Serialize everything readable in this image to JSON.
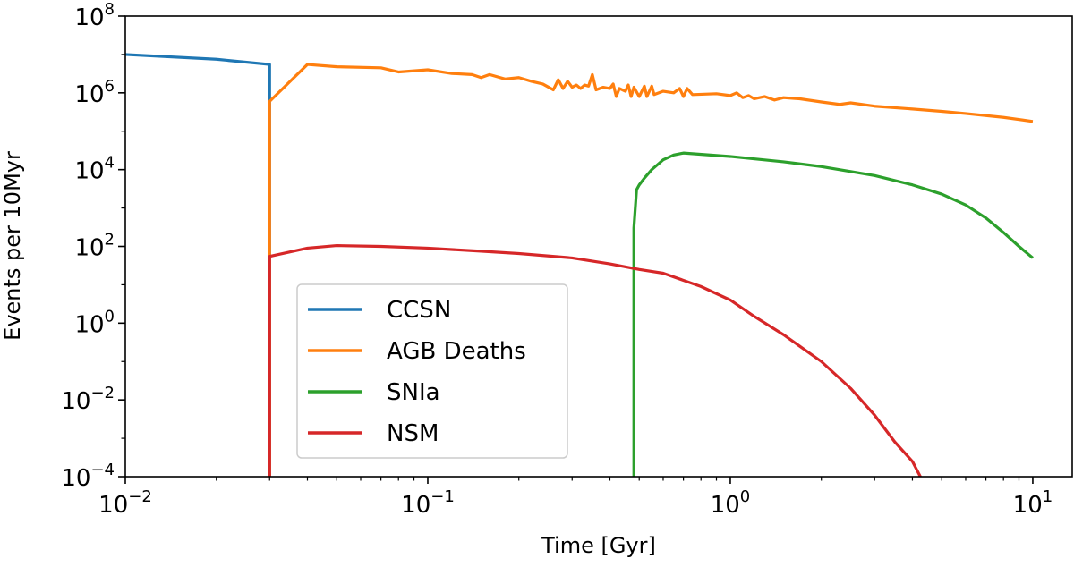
{
  "chart_data": {
    "type": "line",
    "title": "",
    "xlabel": "Time [Gyr]",
    "ylabel": "Events per 10Myr",
    "xscale": "log",
    "yscale": "log",
    "xlim": [
      0.01,
      13.5
    ],
    "ylim": [
      0.0001,
      100000000
    ],
    "x_ticks": [
      {
        "value": 0.01,
        "base": "10",
        "exp": "−2"
      },
      {
        "value": 0.1,
        "base": "10",
        "exp": "−1"
      },
      {
        "value": 1,
        "base": "10",
        "exp": "0"
      },
      {
        "value": 10,
        "base": "10",
        "exp": "1"
      }
    ],
    "y_ticks": [
      {
        "value": 0.0001,
        "base": "10",
        "exp": "−4"
      },
      {
        "value": 0.01,
        "base": "10",
        "exp": "−2"
      },
      {
        "value": 1,
        "base": "10",
        "exp": "0"
      },
      {
        "value": 100,
        "base": "10",
        "exp": "2"
      },
      {
        "value": 10000,
        "base": "10",
        "exp": "4"
      },
      {
        "value": 1000000,
        "base": "10",
        "exp": "6"
      },
      {
        "value": 100000000,
        "base": "10",
        "exp": "8"
      }
    ],
    "legend": {
      "position": "lower-left"
    },
    "series": [
      {
        "name": "CCSN",
        "color": "#1f77b4",
        "points": [
          [
            0.01,
            10000000
          ],
          [
            0.02,
            7500000
          ],
          [
            0.03,
            5500000
          ],
          [
            0.03,
            5e-05
          ]
        ]
      },
      {
        "name": "AGB Deaths",
        "color": "#ff7f0e",
        "points": [
          [
            0.03,
            5e-05
          ],
          [
            0.03,
            600000
          ],
          [
            0.04,
            5500000
          ],
          [
            0.05,
            4800000
          ],
          [
            0.07,
            4500000
          ],
          [
            0.08,
            3500000
          ],
          [
            0.1,
            4000000
          ],
          [
            0.12,
            3200000
          ],
          [
            0.14,
            3000000
          ],
          [
            0.15,
            2500000
          ],
          [
            0.16,
            3000000
          ],
          [
            0.18,
            2300000
          ],
          [
            0.2,
            2500000
          ],
          [
            0.22,
            2000000
          ],
          [
            0.24,
            1700000
          ],
          [
            0.26,
            1200000
          ],
          [
            0.27,
            2200000
          ],
          [
            0.28,
            1300000
          ],
          [
            0.29,
            2000000
          ],
          [
            0.3,
            1400000
          ],
          [
            0.31,
            1600000
          ],
          [
            0.32,
            1300000
          ],
          [
            0.33,
            1600000
          ],
          [
            0.34,
            1500000
          ],
          [
            0.35,
            3000000
          ],
          [
            0.36,
            1200000
          ],
          [
            0.38,
            1400000
          ],
          [
            0.4,
            1300000
          ],
          [
            0.41,
            1700000
          ],
          [
            0.42,
            800000
          ],
          [
            0.43,
            1300000
          ],
          [
            0.45,
            1100000
          ],
          [
            0.46,
            1600000
          ],
          [
            0.47,
            800000
          ],
          [
            0.48,
            1400000
          ],
          [
            0.5,
            800000
          ],
          [
            0.52,
            1500000
          ],
          [
            0.53,
            800000
          ],
          [
            0.55,
            1500000
          ],
          [
            0.56,
            900000
          ],
          [
            0.6,
            1100000
          ],
          [
            0.65,
            1000000
          ],
          [
            0.68,
            1300000
          ],
          [
            0.7,
            800000
          ],
          [
            0.72,
            1300000
          ],
          [
            0.75,
            900000
          ],
          [
            0.9,
            950000
          ],
          [
            1,
            850000
          ],
          [
            1.05,
            1000000
          ],
          [
            1.1,
            750000
          ],
          [
            1.15,
            850000
          ],
          [
            1.2,
            700000
          ],
          [
            1.3,
            800000
          ],
          [
            1.4,
            650000
          ],
          [
            1.5,
            750000
          ],
          [
            1.7,
            700000
          ],
          [
            2,
            580000
          ],
          [
            2.3,
            500000
          ],
          [
            2.5,
            550000
          ],
          [
            3,
            450000
          ],
          [
            4,
            380000
          ],
          [
            5,
            330000
          ],
          [
            6,
            290000
          ],
          [
            8,
            230000
          ],
          [
            10,
            180000
          ]
        ]
      },
      {
        "name": "SNIa",
        "color": "#2ca02c",
        "points": [
          [
            0.48,
            5e-05
          ],
          [
            0.48,
            300
          ],
          [
            0.49,
            3000
          ],
          [
            0.5,
            4000
          ],
          [
            0.52,
            6000
          ],
          [
            0.55,
            10000
          ],
          [
            0.6,
            18000
          ],
          [
            0.65,
            24000
          ],
          [
            0.7,
            27000
          ],
          [
            1,
            22000
          ],
          [
            1.5,
            16000
          ],
          [
            2,
            12000
          ],
          [
            3,
            7000
          ],
          [
            4,
            4000
          ],
          [
            5,
            2300
          ],
          [
            6,
            1200
          ],
          [
            7,
            550
          ],
          [
            8,
            230
          ],
          [
            9,
            100
          ],
          [
            10,
            50
          ]
        ]
      },
      {
        "name": "NSM",
        "color": "#d62728",
        "points": [
          [
            0.03,
            5e-05
          ],
          [
            0.03,
            55
          ],
          [
            0.04,
            90
          ],
          [
            0.05,
            105
          ],
          [
            0.07,
            100
          ],
          [
            0.1,
            90
          ],
          [
            0.15,
            75
          ],
          [
            0.2,
            65
          ],
          [
            0.3,
            50
          ],
          [
            0.4,
            35
          ],
          [
            0.5,
            25
          ],
          [
            0.6,
            20
          ],
          [
            0.8,
            9
          ],
          [
            1,
            4
          ],
          [
            1.2,
            1.5
          ],
          [
            1.5,
            0.5
          ],
          [
            2,
            0.1
          ],
          [
            2.5,
            0.02
          ],
          [
            3,
            0.004
          ],
          [
            3.5,
            0.0008
          ],
          [
            4,
            0.00025
          ],
          [
            4.25,
            0.0001
          ],
          [
            4.3,
            5e-05
          ]
        ]
      }
    ]
  }
}
